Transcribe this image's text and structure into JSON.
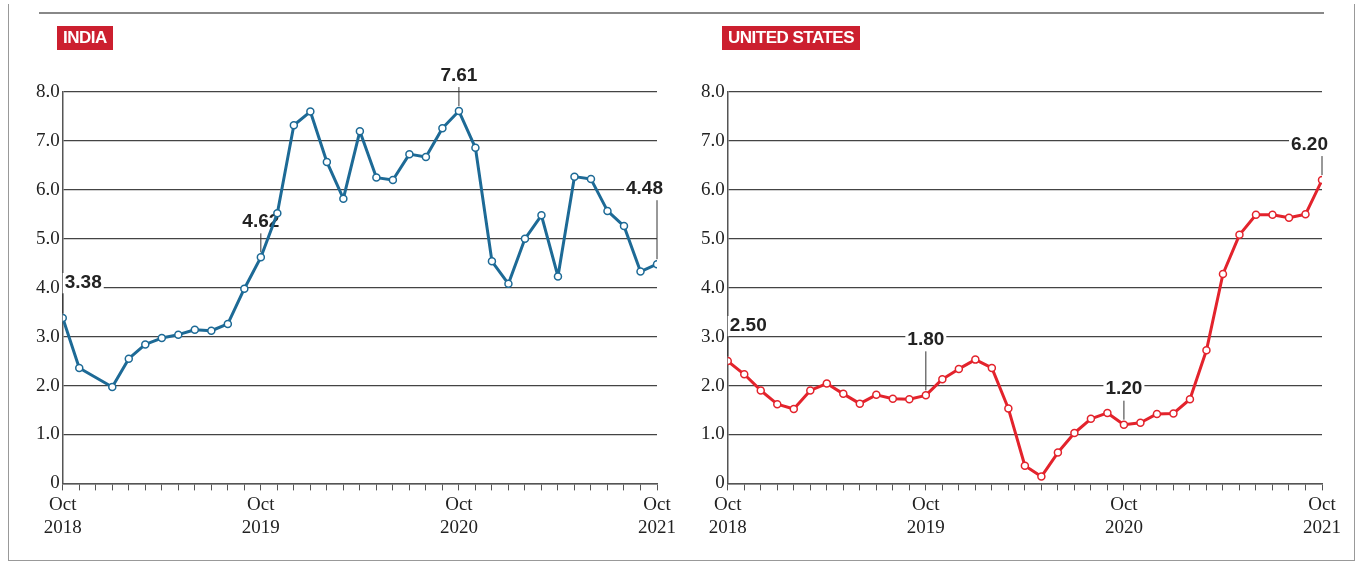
{
  "chart_data": [
    {
      "type": "line",
      "title": "INDIA",
      "x": [
        "2018-10",
        "2018-11",
        "2019-01",
        "2019-02",
        "2019-03",
        "2019-04",
        "2019-05",
        "2019-06",
        "2019-07",
        "2019-08",
        "2019-09",
        "2019-10",
        "2019-11",
        "2019-12",
        "2020-01",
        "2020-02",
        "2020-03",
        "2020-04",
        "2020-05",
        "2020-06",
        "2020-07",
        "2020-08",
        "2020-09",
        "2020-10",
        "2020-11",
        "2020-12",
        "2021-01",
        "2021-02",
        "2021-03",
        "2021-04",
        "2021-05",
        "2021-06",
        "2021-07",
        "2021-08",
        "2021-09",
        "2021-10"
      ],
      "series": [
        {
          "color": "#1d6a96",
          "values": [
            3.38,
            2.36,
            1.97,
            2.55,
            2.84,
            2.97,
            3.04,
            3.14,
            3.12,
            3.26,
            3.98,
            4.62,
            5.52,
            7.32,
            7.6,
            6.57,
            5.82,
            7.2,
            6.25,
            6.2,
            6.73,
            6.67,
            7.26,
            7.61,
            6.86,
            4.54,
            4.08,
            5.0,
            5.48,
            4.23,
            6.27,
            6.22,
            5.57,
            5.26,
            4.33,
            4.48
          ]
        }
      ],
      "xlim": [
        "2018-10",
        "2021-10"
      ],
      "xticks": [
        {
          "value": "2018-10",
          "label": "Oct 2018"
        },
        {
          "value": "2018-11",
          "label": null
        },
        {
          "value": "2018-12",
          "label": null
        },
        {
          "value": "2019-01",
          "label": null
        },
        {
          "value": "2019-02",
          "label": null
        },
        {
          "value": "2019-03",
          "label": null
        },
        {
          "value": "2019-04",
          "label": null
        },
        {
          "value": "2019-05",
          "label": null
        },
        {
          "value": "2019-06",
          "label": null
        },
        {
          "value": "2019-07",
          "label": null
        },
        {
          "value": "2019-08",
          "label": null
        },
        {
          "value": "2019-09",
          "label": null
        },
        {
          "value": "2019-10",
          "label": "Oct 2019"
        },
        {
          "value": "2019-11",
          "label": null
        },
        {
          "value": "2019-12",
          "label": null
        },
        {
          "value": "2020-01",
          "label": null
        },
        {
          "value": "2020-02",
          "label": null
        },
        {
          "value": "2020-03",
          "label": null
        },
        {
          "value": "2020-04",
          "label": null
        },
        {
          "value": "2020-05",
          "label": null
        },
        {
          "value": "2020-06",
          "label": null
        },
        {
          "value": "2020-07",
          "label": null
        },
        {
          "value": "2020-08",
          "label": null
        },
        {
          "value": "2020-09",
          "label": null
        },
        {
          "value": "2020-10",
          "label": "Oct 2020"
        },
        {
          "value": "2020-11",
          "label": null
        },
        {
          "value": "2020-12",
          "label": null
        },
        {
          "value": "2021-01",
          "label": null
        },
        {
          "value": "2021-02",
          "label": null
        },
        {
          "value": "2021-03",
          "label": null
        },
        {
          "value": "2021-04",
          "label": null
        },
        {
          "value": "2021-05",
          "label": null
        },
        {
          "value": "2021-06",
          "label": null
        },
        {
          "value": "2021-07",
          "label": null
        },
        {
          "value": "2021-08",
          "label": null
        },
        {
          "value": "2021-09",
          "label": null
        },
        {
          "value": "2021-10",
          "label": "Oct 2021"
        }
      ],
      "ylim": [
        0,
        8
      ],
      "yticks": [
        0,
        {
          "value": 1,
          "label": "1.0"
        },
        {
          "value": 2,
          "label": "2.0"
        },
        {
          "value": 3,
          "label": "3.0"
        },
        {
          "value": 4,
          "label": "4.0"
        },
        {
          "value": 5,
          "label": "5.0"
        },
        {
          "value": 6,
          "label": "6.0"
        },
        {
          "value": 7,
          "label": "7.0"
        },
        {
          "value": 8,
          "label": "8.0"
        }
      ],
      "grid": "y",
      "legend": false,
      "marker": "circle",
      "line_style": "solid",
      "annotations": [
        {
          "text": "3.38",
          "x": "2018-10",
          "y": 3.38
        },
        {
          "text": "4.62",
          "x": "2019-10",
          "y": 4.62
        },
        {
          "text": "7.61",
          "x": "2020-10",
          "y": 7.61
        },
        {
          "text": "4.48",
          "x": "2021-10",
          "y": 4.48
        }
      ]
    },
    {
      "type": "line",
      "title": "UNITED STATES",
      "x": [
        "2018-10",
        "2018-11",
        "2018-12",
        "2019-01",
        "2019-02",
        "2019-03",
        "2019-04",
        "2019-05",
        "2019-06",
        "2019-07",
        "2019-08",
        "2019-09",
        "2019-10",
        "2019-11",
        "2019-12",
        "2020-01",
        "2020-02",
        "2020-03",
        "2020-04",
        "2020-05",
        "2020-06",
        "2020-07",
        "2020-08",
        "2020-09",
        "2020-10",
        "2020-11",
        "2020-12",
        "2021-01",
        "2021-02",
        "2021-03",
        "2021-04",
        "2021-05",
        "2021-06",
        "2021-07",
        "2021-08",
        "2021-09",
        "2021-10"
      ],
      "series": [
        {
          "color": "#e3232c",
          "values": [
            2.5,
            2.23,
            1.9,
            1.62,
            1.52,
            1.9,
            2.04,
            1.83,
            1.63,
            1.81,
            1.73,
            1.72,
            1.8,
            2.13,
            2.34,
            2.53,
            2.36,
            1.53,
            0.36,
            0.14,
            0.63,
            1.03,
            1.32,
            1.44,
            1.2,
            1.24,
            1.42,
            1.43,
            1.72,
            2.72,
            4.28,
            5.08,
            5.49,
            5.49,
            5.43,
            5.5,
            6.2
          ]
        }
      ],
      "xlim": [
        "2018-10",
        "2021-10"
      ],
      "xticks": [
        {
          "value": "2018-10",
          "label": "Oct 2018"
        },
        {
          "value": "2018-11",
          "label": null
        },
        {
          "value": "2018-12",
          "label": null
        },
        {
          "value": "2019-01",
          "label": null
        },
        {
          "value": "2019-02",
          "label": null
        },
        {
          "value": "2019-03",
          "label": null
        },
        {
          "value": "2019-04",
          "label": null
        },
        {
          "value": "2019-05",
          "label": null
        },
        {
          "value": "2019-06",
          "label": null
        },
        {
          "value": "2019-07",
          "label": null
        },
        {
          "value": "2019-08",
          "label": null
        },
        {
          "value": "2019-09",
          "label": null
        },
        {
          "value": "2019-10",
          "label": "Oct 2019"
        },
        {
          "value": "2019-11",
          "label": null
        },
        {
          "value": "2019-12",
          "label": null
        },
        {
          "value": "2020-01",
          "label": null
        },
        {
          "value": "2020-02",
          "label": null
        },
        {
          "value": "2020-03",
          "label": null
        },
        {
          "value": "2020-04",
          "label": null
        },
        {
          "value": "2020-05",
          "label": null
        },
        {
          "value": "2020-06",
          "label": null
        },
        {
          "value": "2020-07",
          "label": null
        },
        {
          "value": "2020-08",
          "label": null
        },
        {
          "value": "2020-09",
          "label": null
        },
        {
          "value": "2020-10",
          "label": "Oct 2020"
        },
        {
          "value": "2020-11",
          "label": null
        },
        {
          "value": "2020-12",
          "label": null
        },
        {
          "value": "2021-01",
          "label": null
        },
        {
          "value": "2021-02",
          "label": null
        },
        {
          "value": "2021-03",
          "label": null
        },
        {
          "value": "2021-04",
          "label": null
        },
        {
          "value": "2021-05",
          "label": null
        },
        {
          "value": "2021-06",
          "label": null
        },
        {
          "value": "2021-07",
          "label": null
        },
        {
          "value": "2021-08",
          "label": null
        },
        {
          "value": "2021-09",
          "label": null
        },
        {
          "value": "2021-10",
          "label": "Oct 2021"
        }
      ],
      "ylim": [
        0,
        8
      ],
      "yticks": [
        0,
        {
          "value": 1,
          "label": "1.0"
        },
        {
          "value": 2,
          "label": "2.0"
        },
        {
          "value": 3,
          "label": "3.0"
        },
        {
          "value": 4,
          "label": "4.0"
        },
        {
          "value": 5,
          "label": "5.0"
        },
        {
          "value": 6,
          "label": "6.0"
        },
        {
          "value": 7,
          "label": "7.0"
        },
        {
          "value": 8,
          "label": "8.0"
        }
      ],
      "grid": "y",
      "legend": false,
      "marker": "circle",
      "line_style": "solid",
      "annotations": [
        {
          "text": "2.50",
          "x": "2018-10",
          "y": 2.5
        },
        {
          "text": "1.80",
          "x": "2019-10",
          "y": 1.8
        },
        {
          "text": "1.20",
          "x": "2020-10",
          "y": 1.2
        },
        {
          "text": "6.20",
          "x": "2021-10",
          "y": 6.2
        }
      ]
    }
  ]
}
